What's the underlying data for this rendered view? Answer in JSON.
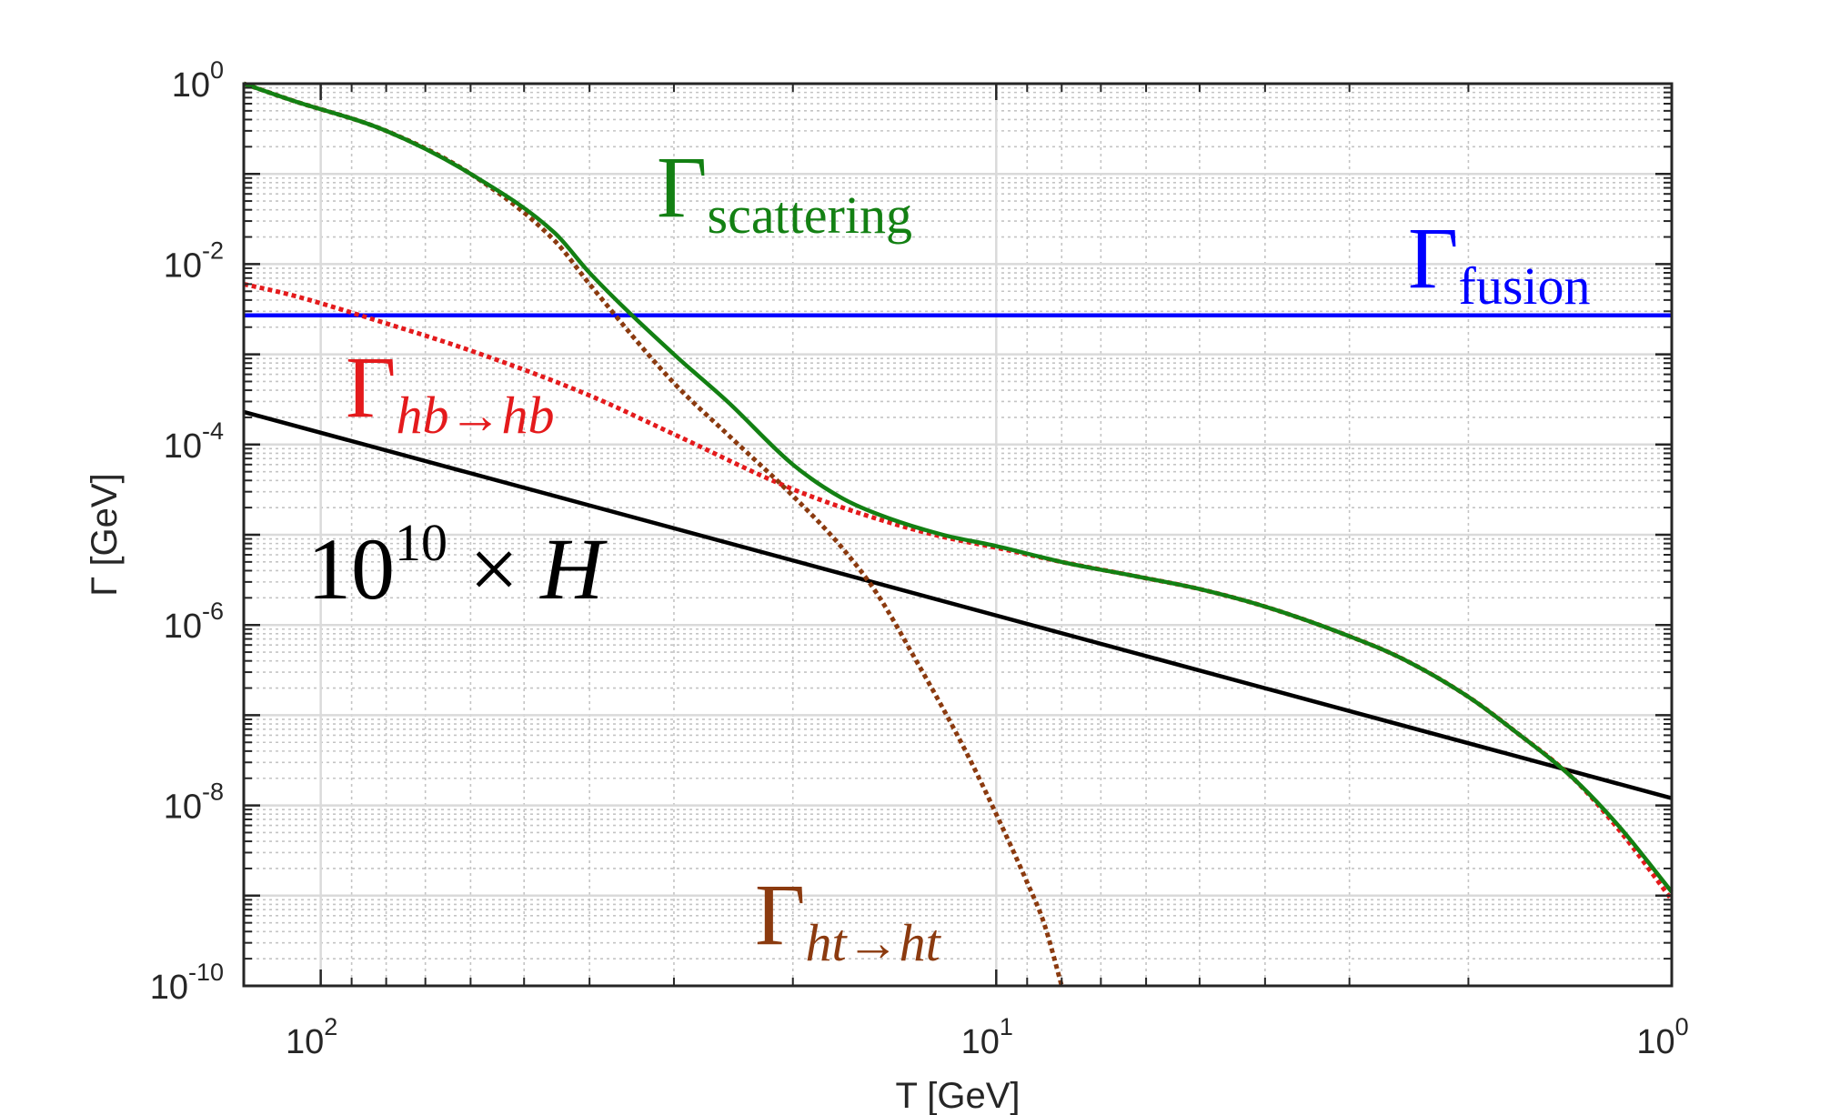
{
  "chart_data": {
    "type": "line",
    "xlabel": "T [GeV]",
    "ylabel": "Γ [GeV]",
    "xscale": "log",
    "yscale": "log",
    "x_direction": "decreasing",
    "xlim": [
      130,
      1
    ],
    "ylim": [
      1e-10,
      1
    ],
    "grid": true,
    "minor_grid": true,
    "x_ticks": [
      {
        "value": 100,
        "base": "10",
        "exp": "2"
      },
      {
        "value": 10,
        "base": "10",
        "exp": "1"
      },
      {
        "value": 1,
        "base": "10",
        "exp": "0"
      }
    ],
    "y_ticks": [
      {
        "value": 1,
        "base": "10",
        "exp": "0"
      },
      {
        "value": 0.01,
        "base": "10",
        "exp": "-2"
      },
      {
        "value": 0.0001,
        "base": "10",
        "exp": "-4"
      },
      {
        "value": 1e-06,
        "base": "10",
        "exp": "-6"
      },
      {
        "value": 1e-08,
        "base": "10",
        "exp": "-8"
      },
      {
        "value": 1e-10,
        "base": "10",
        "exp": "-10"
      }
    ],
    "series": [
      {
        "key": "fusion",
        "color": "#0000ff",
        "style": "solid",
        "x": [
          130,
          1
        ],
        "y": [
          0.0027,
          0.0027
        ]
      },
      {
        "key": "H",
        "color": "#000000",
        "style": "solid",
        "x": [
          130,
          1
        ],
        "y": [
          0.00023,
          1.2e-08
        ]
      },
      {
        "key": "hb",
        "color": "#e41a1c",
        "style": "dotted",
        "x": [
          130,
          110,
          80,
          60,
          40,
          30,
          20,
          15,
          12,
          10,
          8,
          6,
          5,
          4,
          3,
          2.5,
          2,
          1.7,
          1.4,
          1.2,
          1
        ],
        "y": [
          0.006,
          0.0045,
          0.0022,
          0.0011,
          0.00035,
          0.00013,
          3.2e-05,
          1.5e-05,
          9.5e-06,
          7.2e-06,
          5e-06,
          3.3e-06,
          2.5e-06,
          1.6e-06,
          7.5e-07,
          4.2e-07,
          1.6e-07,
          6.5e-08,
          2e-08,
          5.5e-09,
          9e-10
        ]
      },
      {
        "key": "ht",
        "color": "#8b3a0f",
        "style": "dotted",
        "x": [
          130,
          110,
          80,
          60,
          45,
          40,
          30,
          25,
          20,
          17,
          15,
          13,
          12,
          11,
          10,
          9,
          8.5,
          8
        ],
        "y": [
          1.0,
          0.65,
          0.3,
          0.1,
          0.018,
          0.006,
          0.00048,
          0.00013,
          2.7e-05,
          7.5e-06,
          2.2e-06,
          3.5e-07,
          1.2e-07,
          3.5e-08,
          8e-09,
          1.4e-09,
          5e-10,
          1e-10
        ]
      },
      {
        "key": "scattering",
        "color": "#138013",
        "style": "solid",
        "x": [
          130,
          110,
          80,
          60,
          45,
          40,
          30,
          25,
          20,
          17,
          15,
          12,
          10,
          8,
          6,
          5,
          4,
          3,
          2.5,
          2,
          1.7,
          1.4,
          1.2,
          1
        ],
        "y": [
          1.0,
          0.65,
          0.3,
          0.1,
          0.022,
          0.008,
          0.001,
          0.0003,
          6e-05,
          2.6e-05,
          1.7e-05,
          1e-05,
          7.5e-06,
          5e-06,
          3.3e-06,
          2.5e-06,
          1.6e-06,
          7.5e-07,
          4.2e-07,
          1.6e-07,
          6.5e-08,
          2e-08,
          6e-09,
          1.1e-09
        ]
      }
    ],
    "annotations": [
      {
        "key": "scattering",
        "main": "Γ",
        "sub": "scattering",
        "sub_italic": false,
        "color": "#138013"
      },
      {
        "key": "fusion",
        "main": "Γ",
        "sub": "fusion",
        "sub_italic": false,
        "color": "#0000ff"
      },
      {
        "key": "hb",
        "main": "Γ",
        "sub": "hb→hb",
        "sub_italic": true,
        "color": "#e41a1c"
      },
      {
        "key": "H",
        "main": "10",
        "sup": "10",
        "times": " × ",
        "var": "H",
        "color": "#000000"
      },
      {
        "key": "ht",
        "main": "Γ",
        "sub": "ht→ht",
        "sub_italic": true,
        "color": "#8b3a0f"
      }
    ]
  }
}
